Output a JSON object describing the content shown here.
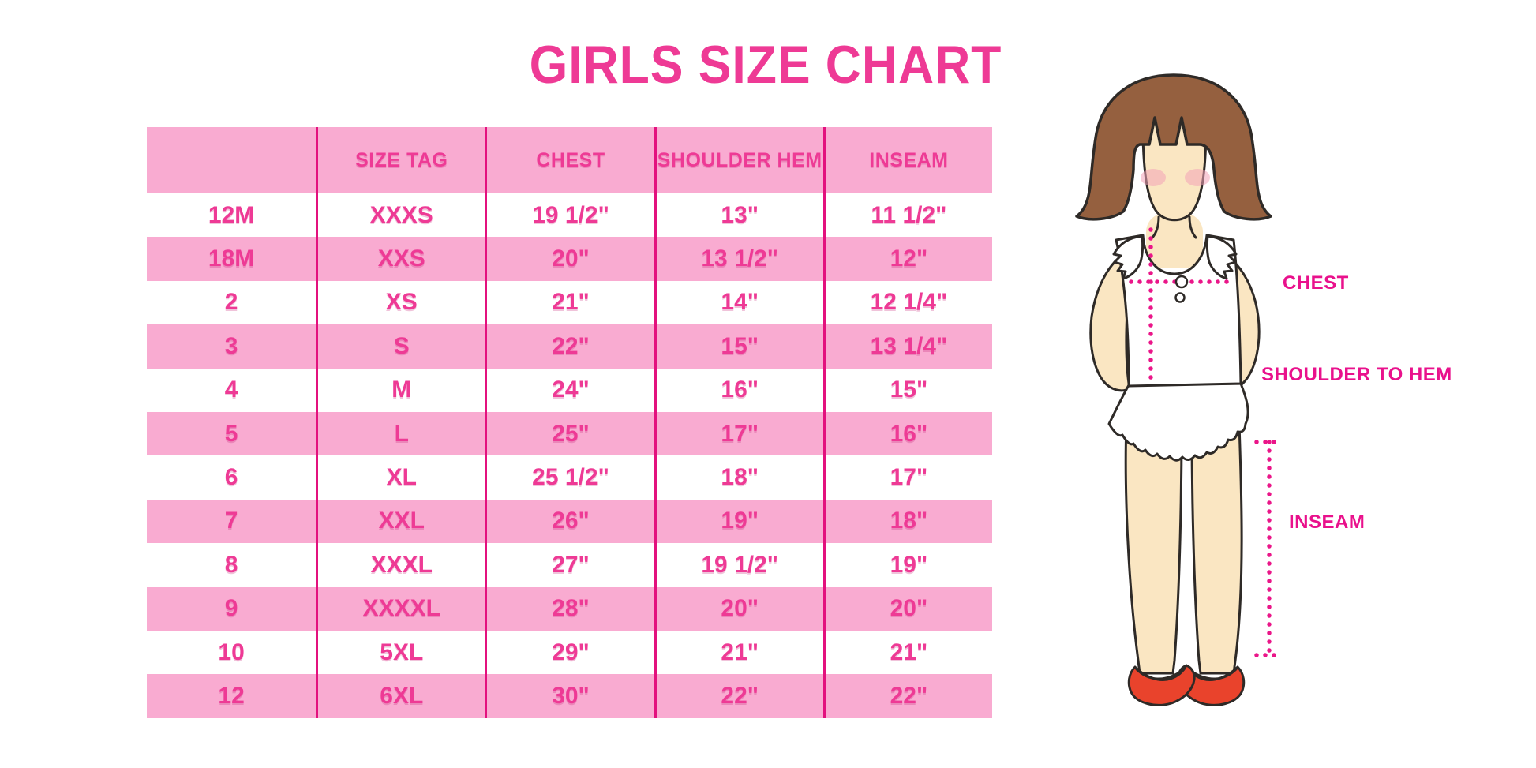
{
  "title": "GIRLS SIZE CHART",
  "size_table": {
    "headers": [
      "",
      "SIZE TAG",
      "CHEST",
      "SHOULDER HEM",
      "INSEAM"
    ],
    "rows": [
      [
        "12M",
        "XXXS",
        "19 1/2\"",
        "13\"",
        "11 1/2\""
      ],
      [
        "18M",
        "XXS",
        "20\"",
        "13 1/2\"",
        "12\""
      ],
      [
        "2",
        "XS",
        "21\"",
        "14\"",
        "12 1/4\""
      ],
      [
        "3",
        "S",
        "22\"",
        "15\"",
        "13 1/4\""
      ],
      [
        "4",
        "M",
        "24\"",
        "16\"",
        "15\""
      ],
      [
        "5",
        "L",
        "25\"",
        "17\"",
        "16\""
      ],
      [
        "6",
        "XL",
        "25 1/2\"",
        "18\"",
        "17\""
      ],
      [
        "7",
        "XXL",
        "26\"",
        "19\"",
        "18\""
      ],
      [
        "8",
        "XXXL",
        "27\"",
        "19 1/2\"",
        "19\""
      ],
      [
        "9",
        "XXXXL",
        "28\"",
        "20\"",
        "20\""
      ],
      [
        "10",
        "5XL",
        "29\"",
        "21\"",
        "21\""
      ],
      [
        "12",
        "6XL",
        "30\"",
        "22\"",
        "22\""
      ]
    ]
  },
  "figure": {
    "labels": {
      "chest": "CHEST",
      "shoulder_to_hem": "SHOULDER TO HEM",
      "inseam": "INSEAM"
    }
  },
  "colors": {
    "background": "#FFFFFF",
    "title_pink": "#EE3A95",
    "table_text_pink": "#EE3A95",
    "band_pink": "#F9ABD1",
    "divider_magenta": "#E3117E",
    "label_magenta": "#E9118C",
    "dotted_line_pink": "#EA1689",
    "hair_brown": "#95603F",
    "skin": "#FAE6C2",
    "blush": "#F2A3B8",
    "shoe_red": "#E9432C",
    "outline": "#2E2A27"
  }
}
